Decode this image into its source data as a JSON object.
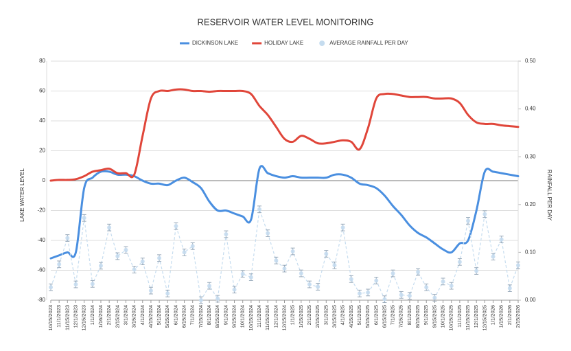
{
  "chart_data": {
    "type": "line",
    "title": "RESERVOIR WATER LEVEL MONITORING",
    "y_label": "LAKE WATER LEVEL",
    "y2_label": "RAINFALL PER DAY",
    "categories": [
      "10/15/2023",
      "11/1/2023",
      "11/15/2023",
      "12/1/2023",
      "12/15/2023",
      "1/1/2024",
      "1/16/2024",
      "2/1/2024",
      "2/15/2024",
      "3/1/2024",
      "3/15/2024",
      "4/1/2024",
      "4/15/2024",
      "5/1/2024",
      "5/15/2024",
      "6/1/2024",
      "6/15/2024",
      "7/1/2024",
      "7/15/2024",
      "8/1/2024",
      "8/15/2024",
      "9/1/2024",
      "9/15/2024",
      "10/1/2024",
      "10/15/2024",
      "11/1/2024",
      "11/15/2024",
      "12/1/2024",
      "12/15/2024",
      "1/1/2025",
      "1/15/2025",
      "2/1/2025",
      "2/15/2025",
      "3/1/2025",
      "3/15/2025",
      "4/1/2025",
      "4/15/2025",
      "5/1/2025",
      "5/15/2025",
      "6/1/2025",
      "6/15/2025",
      "7/1/2025",
      "7/15/2025",
      "8/1/2025",
      "8/15/2025",
      "9/1/2025",
      "9/15/2025",
      "10/1/2025",
      "10/15/2025",
      "11/1/2025",
      "11/15/2025",
      "12/1/2025",
      "12/15/2025",
      "1/1/2026",
      "1/15/2026",
      "2/1/2026",
      "2/15/2026"
    ],
    "series": [
      {
        "name": "DICKINSON LAKE",
        "color": "#4a8fe0",
        "values": [
          -52,
          -50,
          -48,
          -48,
          -5,
          2,
          6,
          6,
          4,
          4,
          3,
          0,
          -2,
          -2,
          -3,
          0,
          2,
          -1,
          -5,
          -14,
          -20,
          -20,
          -22,
          -24,
          -26,
          8,
          5,
          3,
          2,
          3,
          2,
          2,
          2,
          2,
          4,
          4,
          2,
          -2,
          -3,
          -5,
          -10,
          -17,
          -23,
          -30,
          -35,
          -38,
          -42,
          -46,
          -48,
          -42,
          -40,
          -20,
          6,
          6,
          5,
          4,
          3
        ]
      },
      {
        "name": "HOLIDAY LAKE",
        "color": "#e0463a",
        "values": [
          0,
          0.5,
          0.5,
          1,
          3,
          6,
          7,
          8,
          5,
          5,
          4,
          30,
          55,
          60,
          60,
          61,
          61,
          60,
          60,
          59.5,
          60,
          60,
          60,
          60,
          58,
          50,
          44,
          36,
          28,
          26,
          30,
          28,
          25,
          25,
          26,
          27,
          26,
          21,
          35,
          55,
          58,
          58,
          57,
          56,
          56,
          56,
          55,
          55,
          55,
          52,
          44,
          39,
          38,
          38,
          37,
          36.5,
          36
        ]
      },
      {
        "name": "AVERAGE RAINFALL PER DAY",
        "color": "#c5dcef",
        "axis": "y2",
        "error": 0.007,
        "values": [
          0.027,
          0.075,
          0.13,
          0.033,
          0.172,
          0.034,
          0.072,
          0.152,
          0.092,
          0.105,
          0.064,
          0.081,
          0.02,
          0.088,
          0.014,
          0.155,
          0.1,
          0.113,
          0,
          0.03,
          0.003,
          0.138,
          0.022,
          0.055,
          0.048,
          0.19,
          0.14,
          0.083,
          0.066,
          0.102,
          0.056,
          0.033,
          0.028,
          0.097,
          0.073,
          0.152,
          0.044,
          0.014,
          0.016,
          0.041,
          0.002,
          0.056,
          0.011,
          0.009,
          0.059,
          0.027,
          0.005,
          0.039,
          0.03,
          0.08,
          0.166,
          0.061,
          0.18,
          0.091,
          0.127,
          0.025,
          0.073
        ]
      }
    ],
    "ylim": [
      -80,
      80
    ],
    "yticks": [
      -80,
      -60,
      -40,
      -20,
      0,
      20,
      40,
      60,
      80
    ],
    "y2lim": [
      0,
      0.5
    ],
    "y2ticks": [
      {
        "value": 0,
        "label": "0.00"
      },
      {
        "value": 0.1,
        "label": "0.10"
      },
      {
        "value": 0.2,
        "label": "0.20"
      },
      {
        "value": 0.3,
        "label": "0.30"
      },
      {
        "value": 0.4,
        "label": "0.40"
      },
      {
        "value": 0.5,
        "label": "0.50"
      }
    ],
    "grid": true,
    "legend": "top"
  }
}
